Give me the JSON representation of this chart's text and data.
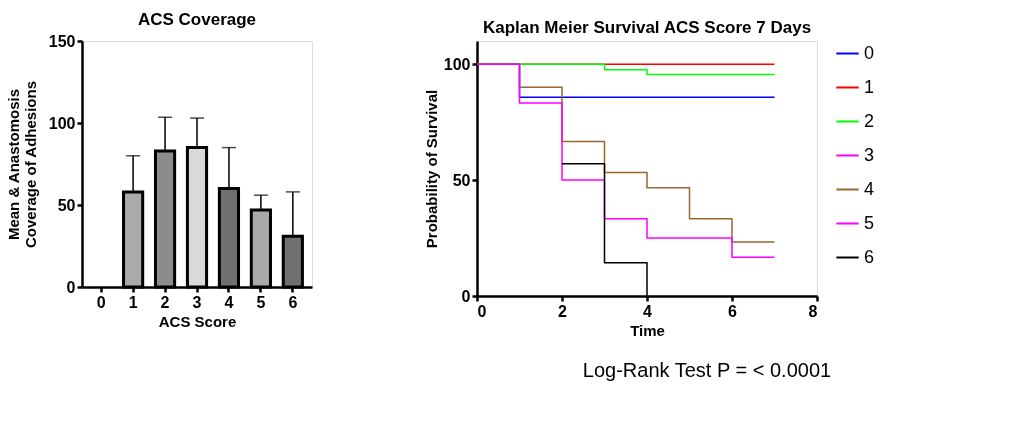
{
  "chart_data": [
    {
      "type": "bar",
      "title": "ACS Coverage",
      "xlabel": "ACS Score",
      "ylabel": "Mean & Anastomosis\nCoverage of Adhesions",
      "categories": [
        "0",
        "1",
        "2",
        "3",
        "4",
        "5",
        "6"
      ],
      "values": [
        null,
        58,
        83,
        85,
        60,
        47,
        31
      ],
      "colors": [
        "#aaaaaa",
        "#aaaaaa",
        "#8c8c8c",
        "#d9d9d9",
        "#707070",
        "#a9a9a9",
        "#707070"
      ],
      "errors": [
        null,
        [
          58,
          80
        ],
        [
          83,
          103.5
        ],
        [
          85,
          103
        ],
        [
          60,
          85
        ],
        [
          47,
          56
        ],
        [
          31,
          58
        ]
      ],
      "ylim": [
        0,
        150
      ],
      "yticks": [
        0,
        50,
        100,
        150
      ],
      "grid": false
    },
    {
      "type": "step",
      "title": "Kaplan Meier Survival  ACS Score 7 Days",
      "xlabel": "Time",
      "ylabel": "Probability of Survival",
      "series": [
        {
          "name": "0",
          "color": "#0000ff",
          "x": [
            0,
            1,
            7
          ],
          "values": [
            100,
            85.7,
            85.7
          ]
        },
        {
          "name": "1",
          "color": "#ff0000",
          "x": [
            0,
            7
          ],
          "values": [
            100,
            100
          ]
        },
        {
          "name": "2",
          "color": "#00ff00",
          "x": [
            0,
            3,
            4,
            7
          ],
          "values": [
            100,
            97.6,
            95.5,
            95.5
          ]
        },
        {
          "name": "3",
          "color": "#ff00ff"
        },
        {
          "name": "4",
          "color": "#996633",
          "x": [
            0,
            1,
            2,
            3,
            4,
            5,
            6,
            7
          ],
          "values": [
            100,
            90,
            66.7,
            53.3,
            46.7,
            33.3,
            23.3,
            23.3
          ]
        },
        {
          "name": "5",
          "color": "#ff00ff",
          "x": [
            0,
            1,
            2,
            3,
            4,
            6,
            7
          ],
          "values": [
            100,
            83.3,
            50,
            33.3,
            25,
            16.7,
            16.7
          ]
        },
        {
          "name": "6",
          "color": "#000000",
          "x": [
            2,
            3,
            4
          ],
          "values": [
            57.1,
            14.3,
            0
          ]
        }
      ],
      "xlim": [
        0,
        8
      ],
      "xticks": [
        0,
        2,
        4,
        6,
        8
      ],
      "ylim": [
        0,
        110
      ],
      "yticks": [
        0,
        50,
        100
      ],
      "grid": false,
      "legend": "right",
      "marker": "none",
      "line_style": "solid",
      "annotations": [
        "Log-Rank Test P = < 0.0001"
      ]
    }
  ]
}
